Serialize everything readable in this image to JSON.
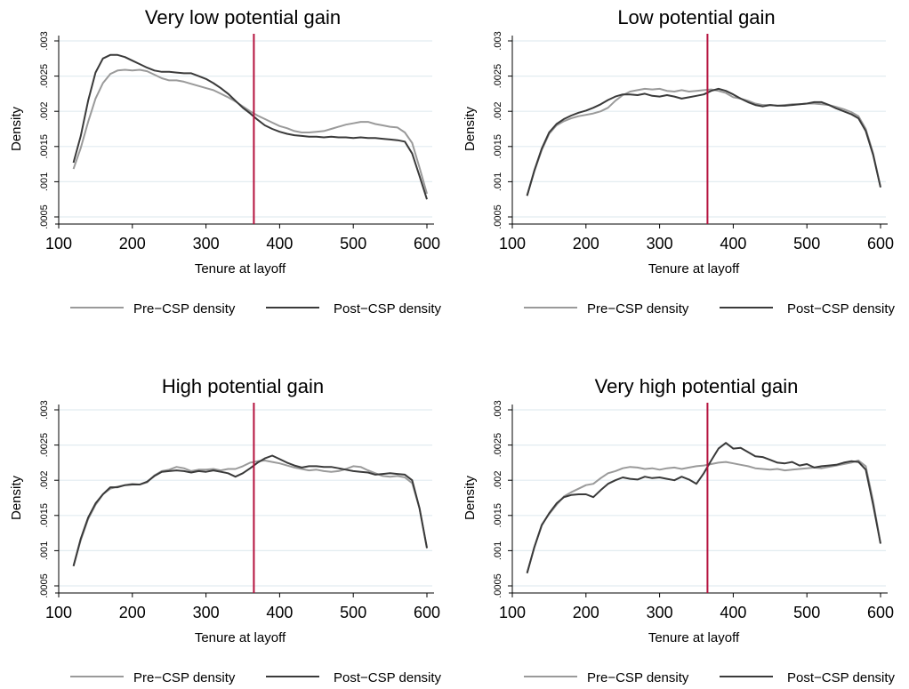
{
  "chart_data": [
    {
      "type": "line",
      "title": "Very low potential gain",
      "xlabel": "Tenure at layoff",
      "ylabel": "Density",
      "xlim": [
        100,
        600
      ],
      "ylim": [
        0.0005,
        0.003
      ],
      "xticks": [
        "100",
        "200",
        "300",
        "400",
        "500",
        "600"
      ],
      "yticks": [
        ".0005",
        ".001",
        ".0015",
        ".002",
        ".0025",
        ".003"
      ],
      "vline_x": 365,
      "grid": true,
      "legend_position": "bottom",
      "series": [
        {
          "name": "Pre−CSP density",
          "x": [
            120,
            130,
            140,
            150,
            160,
            170,
            180,
            190,
            200,
            210,
            220,
            230,
            240,
            250,
            260,
            270,
            280,
            290,
            300,
            310,
            320,
            330,
            340,
            350,
            360,
            370,
            380,
            390,
            400,
            410,
            420,
            430,
            440,
            450,
            460,
            470,
            480,
            490,
            500,
            510,
            520,
            530,
            540,
            550,
            560,
            570,
            580,
            590,
            600
          ],
          "y": [
            0.00118,
            0.00148,
            0.00185,
            0.00218,
            0.0024,
            0.00253,
            0.00258,
            0.00259,
            0.00258,
            0.00259,
            0.00257,
            0.00252,
            0.00247,
            0.00244,
            0.00244,
            0.00242,
            0.00239,
            0.00236,
            0.00233,
            0.0023,
            0.00225,
            0.0022,
            0.00214,
            0.00207,
            0.002,
            0.00194,
            0.00189,
            0.00184,
            0.00179,
            0.00176,
            0.00172,
            0.0017,
            0.0017,
            0.00171,
            0.00172,
            0.00175,
            0.00178,
            0.00181,
            0.00183,
            0.00185,
            0.00185,
            0.00182,
            0.0018,
            0.00178,
            0.00177,
            0.0017,
            0.00155,
            0.0012,
            0.00083
          ]
        },
        {
          "name": "Post−CSP density",
          "x": [
            120,
            130,
            140,
            150,
            160,
            170,
            180,
            190,
            200,
            210,
            220,
            230,
            240,
            250,
            260,
            270,
            280,
            290,
            300,
            310,
            320,
            330,
            340,
            350,
            360,
            370,
            380,
            390,
            400,
            410,
            420,
            430,
            440,
            450,
            460,
            470,
            480,
            490,
            500,
            510,
            520,
            530,
            540,
            550,
            560,
            570,
            580,
            590,
            600
          ],
          "y": [
            0.00127,
            0.00165,
            0.00215,
            0.00255,
            0.00275,
            0.0028,
            0.0028,
            0.00277,
            0.00272,
            0.00267,
            0.00262,
            0.00258,
            0.00256,
            0.00256,
            0.00255,
            0.00254,
            0.00254,
            0.0025,
            0.00246,
            0.0024,
            0.00233,
            0.00225,
            0.00215,
            0.00205,
            0.00197,
            0.00188,
            0.0018,
            0.00175,
            0.00171,
            0.00168,
            0.00166,
            0.00165,
            0.00164,
            0.00164,
            0.00163,
            0.00164,
            0.00163,
            0.00163,
            0.00162,
            0.00163,
            0.00162,
            0.00162,
            0.00161,
            0.0016,
            0.00159,
            0.00157,
            0.0014,
            0.00108,
            0.00075
          ]
        }
      ]
    },
    {
      "type": "line",
      "title": "Low potential gain",
      "xlabel": "Tenure at layoff",
      "ylabel": "Density",
      "xlim": [
        100,
        600
      ],
      "ylim": [
        0.0005,
        0.003
      ],
      "xticks": [
        "100",
        "200",
        "300",
        "400",
        "500",
        "600"
      ],
      "yticks": [
        ".0005",
        ".001",
        ".0015",
        ".002",
        ".0025",
        ".003"
      ],
      "vline_x": 365,
      "grid": true,
      "legend_position": "bottom",
      "series": [
        {
          "name": "Pre−CSP density",
          "x": [
            120,
            130,
            140,
            150,
            160,
            170,
            180,
            190,
            200,
            210,
            220,
            230,
            240,
            250,
            260,
            270,
            280,
            290,
            300,
            310,
            320,
            330,
            340,
            350,
            360,
            370,
            380,
            390,
            400,
            410,
            420,
            430,
            440,
            450,
            460,
            470,
            480,
            490,
            500,
            510,
            520,
            530,
            540,
            550,
            560,
            570,
            580,
            590,
            600
          ],
          "y": [
            0.0008,
            0.00115,
            0.00145,
            0.00168,
            0.0018,
            0.00186,
            0.0019,
            0.00193,
            0.00195,
            0.00197,
            0.002,
            0.00205,
            0.00215,
            0.00223,
            0.00228,
            0.0023,
            0.00232,
            0.00231,
            0.00232,
            0.00229,
            0.00228,
            0.0023,
            0.00228,
            0.00229,
            0.0023,
            0.00231,
            0.00229,
            0.00226,
            0.0022,
            0.00218,
            0.00215,
            0.00211,
            0.00209,
            0.00209,
            0.00208,
            0.00209,
            0.0021,
            0.0021,
            0.00211,
            0.00211,
            0.0021,
            0.00209,
            0.00206,
            0.00203,
            0.00199,
            0.00193,
            0.00175,
            0.0014,
            0.00092
          ]
        },
        {
          "name": "Post−CSP density",
          "x": [
            120,
            130,
            140,
            150,
            160,
            170,
            180,
            190,
            200,
            210,
            220,
            230,
            240,
            250,
            260,
            270,
            280,
            290,
            300,
            310,
            320,
            330,
            340,
            350,
            360,
            370,
            380,
            390,
            400,
            410,
            420,
            430,
            440,
            450,
            460,
            470,
            480,
            490,
            500,
            510,
            520,
            530,
            540,
            550,
            560,
            570,
            580,
            590,
            600
          ],
          "y": [
            0.0008,
            0.00116,
            0.00147,
            0.0017,
            0.00182,
            0.00189,
            0.00194,
            0.00198,
            0.00201,
            0.00205,
            0.0021,
            0.00216,
            0.00221,
            0.00224,
            0.00224,
            0.00223,
            0.00225,
            0.00222,
            0.00221,
            0.00223,
            0.00221,
            0.00218,
            0.0022,
            0.00222,
            0.00224,
            0.00229,
            0.00232,
            0.00229,
            0.00224,
            0.00218,
            0.00213,
            0.00209,
            0.00207,
            0.00209,
            0.00208,
            0.00208,
            0.00209,
            0.0021,
            0.00211,
            0.00213,
            0.00213,
            0.00209,
            0.00204,
            0.002,
            0.00196,
            0.0019,
            0.00172,
            0.00138,
            0.00092
          ]
        }
      ]
    },
    {
      "type": "line",
      "title": "High potential gain",
      "xlabel": "Tenure at layoff",
      "ylabel": "Density",
      "xlim": [
        100,
        600
      ],
      "ylim": [
        0.0005,
        0.003
      ],
      "xticks": [
        "100",
        "200",
        "300",
        "400",
        "500",
        "600"
      ],
      "yticks": [
        ".0005",
        ".001",
        ".0015",
        ".002",
        ".0025",
        ".003"
      ],
      "vline_x": 365,
      "grid": true,
      "legend_position": "bottom",
      "series": [
        {
          "name": "Pre−CSP density",
          "x": [
            120,
            130,
            140,
            150,
            160,
            170,
            180,
            190,
            200,
            210,
            220,
            230,
            240,
            250,
            260,
            270,
            280,
            290,
            300,
            310,
            320,
            330,
            340,
            350,
            360,
            370,
            380,
            390,
            400,
            410,
            420,
            430,
            440,
            450,
            460,
            470,
            480,
            490,
            500,
            510,
            520,
            530,
            540,
            550,
            560,
            570,
            580,
            590,
            600
          ],
          "y": [
            0.00078,
            0.00115,
            0.00145,
            0.00165,
            0.0018,
            0.00188,
            0.00191,
            0.00193,
            0.00195,
            0.00194,
            0.00197,
            0.00207,
            0.00213,
            0.00215,
            0.00219,
            0.00217,
            0.00213,
            0.00215,
            0.00215,
            0.00216,
            0.00214,
            0.00216,
            0.00216,
            0.0022,
            0.00225,
            0.00227,
            0.00228,
            0.00226,
            0.00224,
            0.00221,
            0.00218,
            0.00216,
            0.00214,
            0.00215,
            0.00213,
            0.00212,
            0.00213,
            0.00216,
            0.0022,
            0.00219,
            0.00214,
            0.0021,
            0.00206,
            0.00205,
            0.00206,
            0.00204,
            0.00196,
            0.0016,
            0.00103
          ]
        },
        {
          "name": "Post−CSP density",
          "x": [
            120,
            130,
            140,
            150,
            160,
            170,
            180,
            190,
            200,
            210,
            220,
            230,
            240,
            250,
            260,
            270,
            280,
            290,
            300,
            310,
            320,
            330,
            340,
            350,
            360,
            370,
            380,
            390,
            400,
            410,
            420,
            430,
            440,
            450,
            460,
            470,
            480,
            490,
            500,
            510,
            520,
            530,
            540,
            550,
            560,
            570,
            580,
            590,
            600
          ],
          "y": [
            0.00078,
            0.00117,
            0.00147,
            0.00167,
            0.0018,
            0.0019,
            0.0019,
            0.00193,
            0.00194,
            0.00194,
            0.00198,
            0.00206,
            0.00212,
            0.00213,
            0.00214,
            0.00213,
            0.00211,
            0.00213,
            0.00212,
            0.00214,
            0.00212,
            0.0021,
            0.00205,
            0.0021,
            0.00217,
            0.00225,
            0.00231,
            0.00235,
            0.0023,
            0.00225,
            0.00221,
            0.00218,
            0.0022,
            0.0022,
            0.00219,
            0.00219,
            0.00217,
            0.00215,
            0.00213,
            0.00212,
            0.00211,
            0.00208,
            0.00209,
            0.0021,
            0.00209,
            0.00208,
            0.002,
            0.0016,
            0.00104
          ]
        }
      ]
    },
    {
      "type": "line",
      "title": "Very high potential gain",
      "xlabel": "Tenure at layoff",
      "ylabel": "Density",
      "xlim": [
        100,
        600
      ],
      "ylim": [
        0.0005,
        0.003
      ],
      "xticks": [
        "100",
        "200",
        "300",
        "400",
        "500",
        "600"
      ],
      "yticks": [
        ".0005",
        ".001",
        ".0015",
        ".002",
        ".0025",
        ".003"
      ],
      "vline_x": 365,
      "grid": true,
      "legend_position": "bottom",
      "series": [
        {
          "name": "Pre−CSP density",
          "x": [
            120,
            130,
            140,
            150,
            160,
            170,
            180,
            190,
            200,
            210,
            220,
            230,
            240,
            250,
            260,
            270,
            280,
            290,
            300,
            310,
            320,
            330,
            340,
            350,
            360,
            370,
            380,
            390,
            400,
            410,
            420,
            430,
            440,
            450,
            460,
            470,
            480,
            490,
            500,
            510,
            520,
            530,
            540,
            550,
            560,
            570,
            580,
            590,
            600
          ],
          "y": [
            0.00068,
            0.00105,
            0.00137,
            0.00152,
            0.00165,
            0.00177,
            0.00183,
            0.00188,
            0.00193,
            0.00195,
            0.00203,
            0.0021,
            0.00213,
            0.00217,
            0.00219,
            0.00218,
            0.00216,
            0.00217,
            0.00215,
            0.00217,
            0.00218,
            0.00216,
            0.00218,
            0.0022,
            0.00221,
            0.00223,
            0.00225,
            0.00226,
            0.00224,
            0.00222,
            0.0022,
            0.00217,
            0.00216,
            0.00215,
            0.00216,
            0.00214,
            0.00215,
            0.00216,
            0.00217,
            0.00218,
            0.00217,
            0.00219,
            0.00221,
            0.00223,
            0.00225,
            0.00228,
            0.0022,
            0.0017,
            0.0011
          ]
        },
        {
          "name": "Post−CSP density",
          "x": [
            120,
            130,
            140,
            150,
            160,
            170,
            180,
            190,
            200,
            210,
            220,
            230,
            240,
            250,
            260,
            270,
            280,
            290,
            300,
            310,
            320,
            330,
            340,
            350,
            360,
            370,
            380,
            390,
            400,
            410,
            420,
            430,
            440,
            450,
            460,
            470,
            480,
            490,
            500,
            510,
            520,
            530,
            540,
            550,
            560,
            570,
            580,
            590,
            600
          ],
          "y": [
            0.00068,
            0.00105,
            0.00136,
            0.00153,
            0.00167,
            0.00176,
            0.00179,
            0.0018,
            0.0018,
            0.00176,
            0.00186,
            0.00195,
            0.002,
            0.00204,
            0.00202,
            0.00201,
            0.00205,
            0.00203,
            0.00204,
            0.00202,
            0.002,
            0.00205,
            0.00201,
            0.00195,
            0.0021,
            0.00228,
            0.00245,
            0.00253,
            0.00245,
            0.00246,
            0.0024,
            0.00234,
            0.00233,
            0.00229,
            0.00225,
            0.00224,
            0.00226,
            0.00221,
            0.00223,
            0.00218,
            0.0022,
            0.00221,
            0.00222,
            0.00225,
            0.00227,
            0.00226,
            0.00215,
            0.00165,
            0.0011
          ]
        }
      ]
    }
  ],
  "colors": {
    "pre_line": "#9a9a9a",
    "post_line": "#3a3a3a",
    "cutoff_line": "#b5123e",
    "grid": "#e2ecf0",
    "axis": "#000000"
  }
}
